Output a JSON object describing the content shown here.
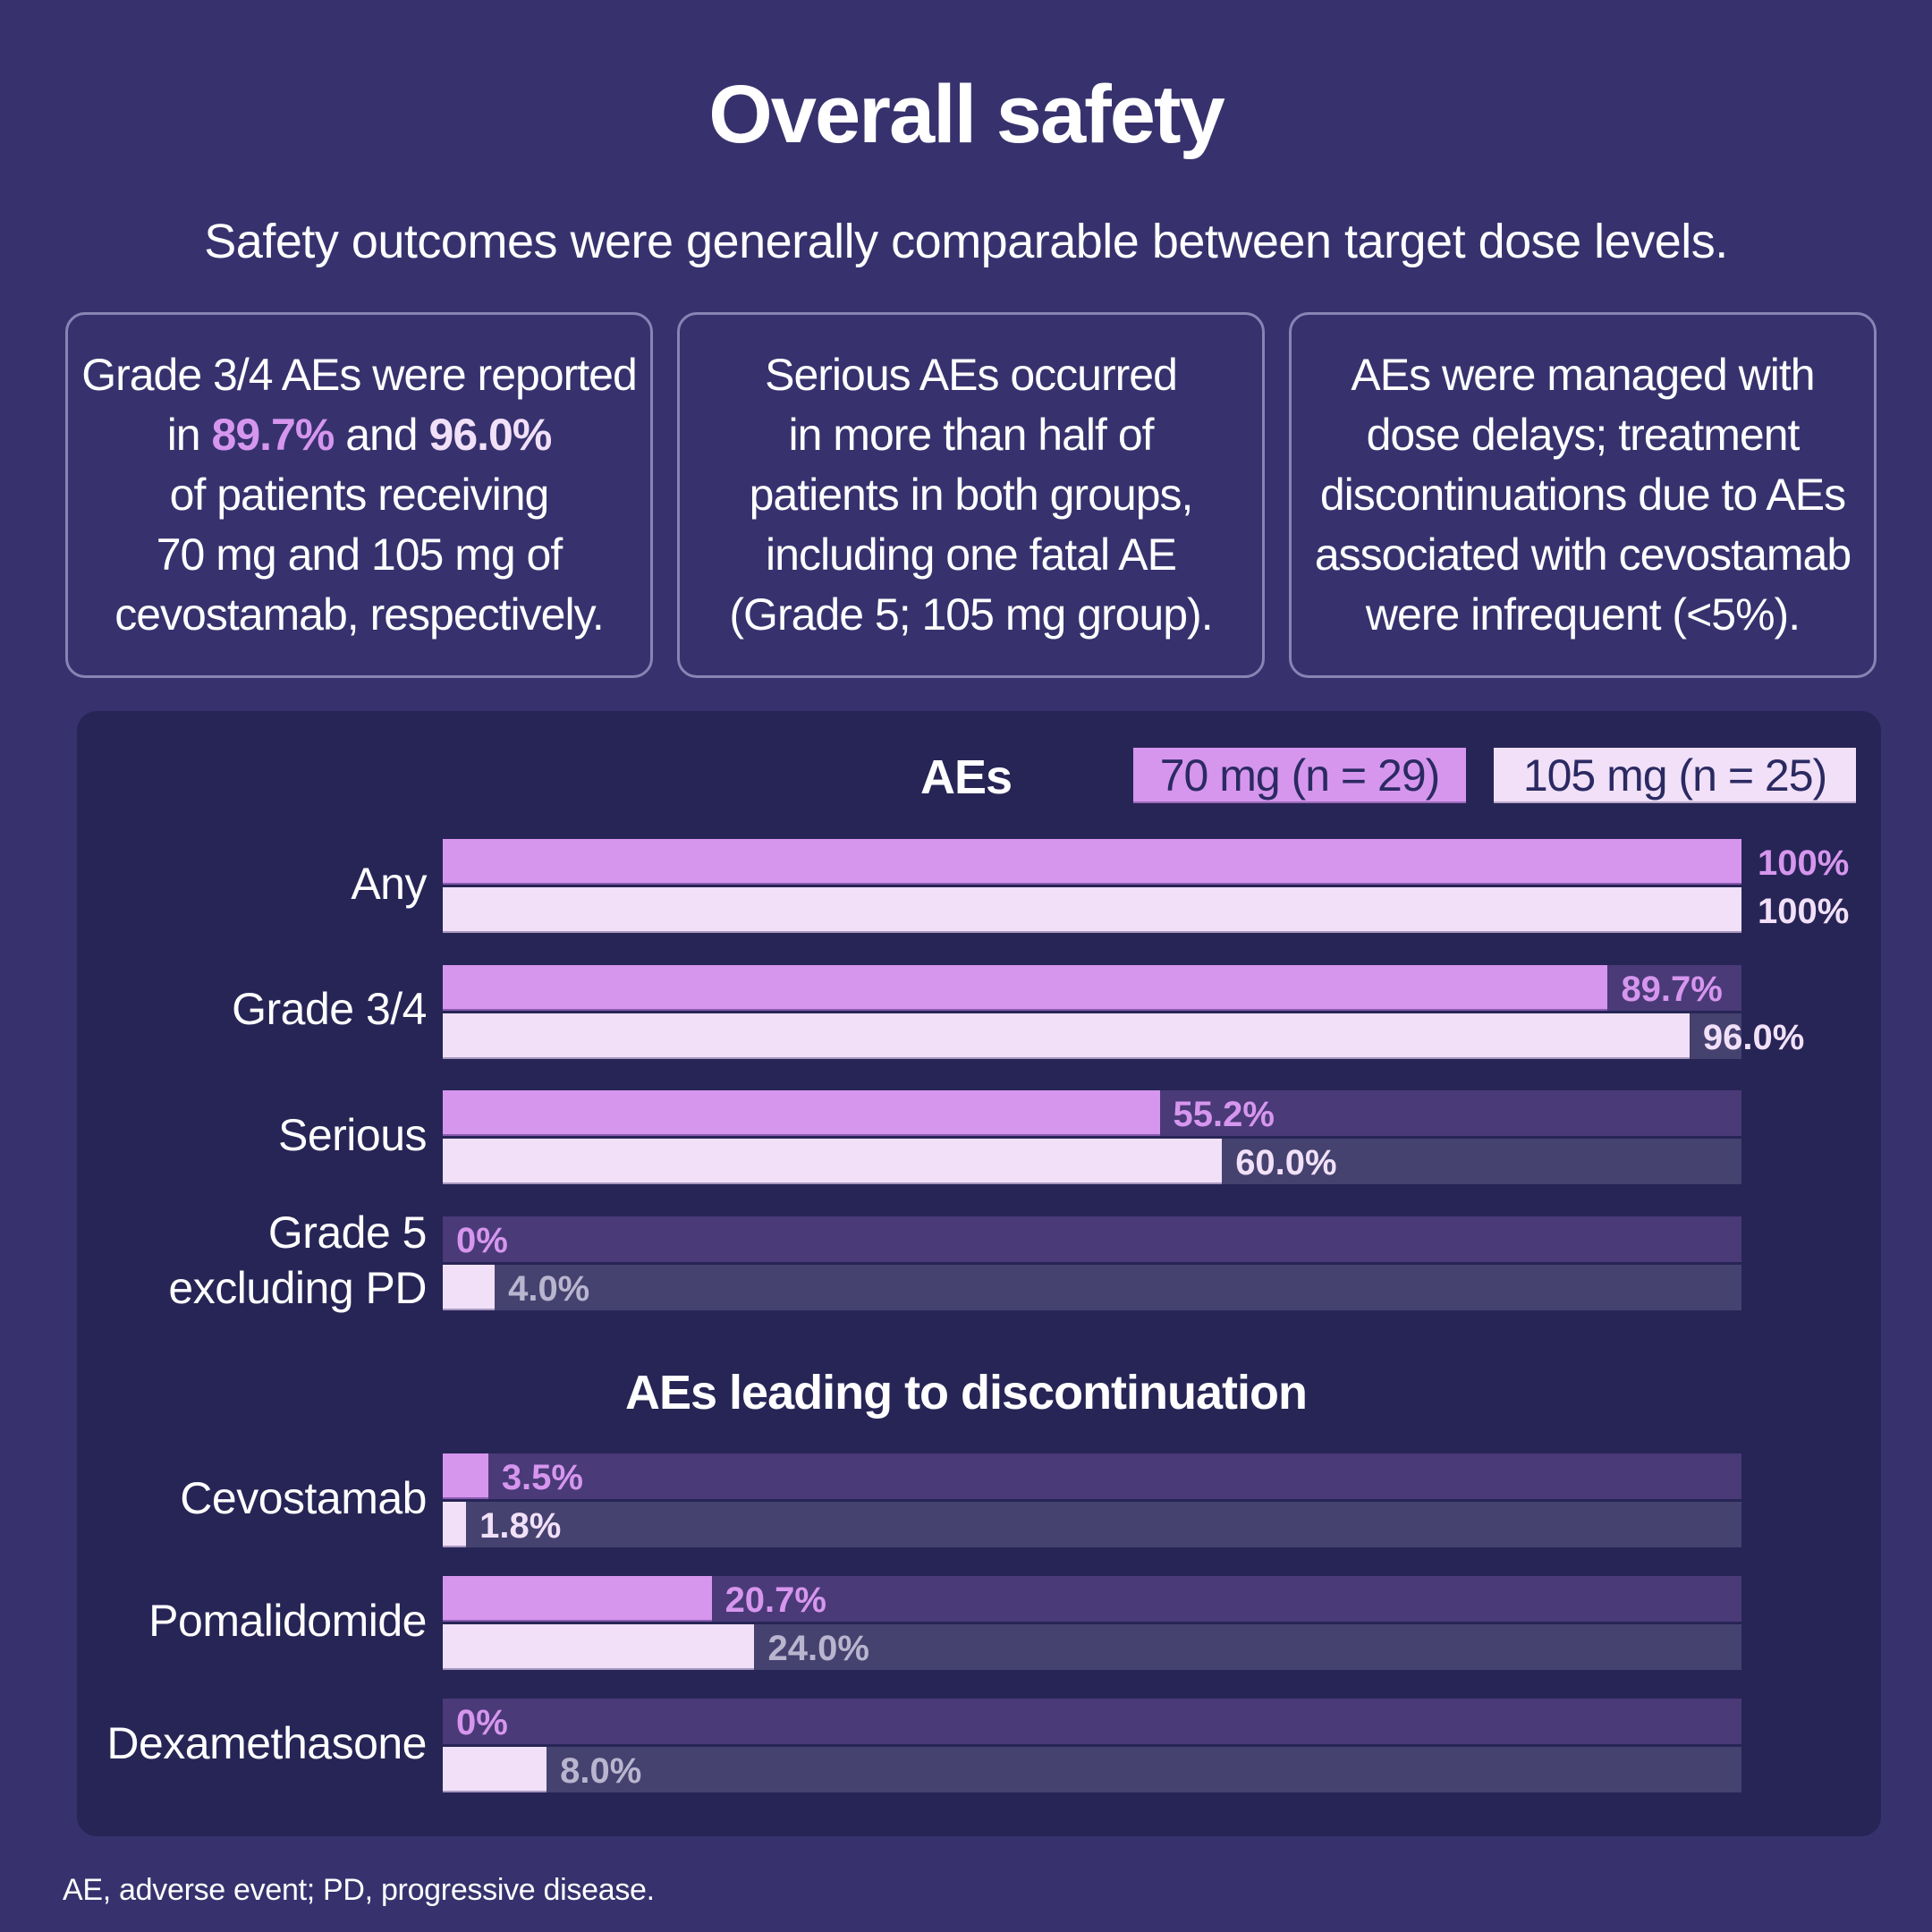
{
  "title": "Overall safety",
  "subtitle": "Safety outcomes were generally comparable between target dose levels.",
  "cards": [
    {
      "lines": [
        [
          {
            "text": "Grade 3/4 AEs were reported"
          }
        ],
        [
          {
            "text": "in "
          },
          {
            "text": "89.7%",
            "style": "hl70"
          },
          {
            "text": " and "
          },
          {
            "text": "96.0%",
            "style": "hl105"
          }
        ],
        [
          {
            "text": "of patients receiving"
          }
        ],
        [
          {
            "text": "70 mg and 105 mg of"
          }
        ],
        [
          {
            "text": "cevostamab, respectively."
          }
        ]
      ]
    },
    {
      "lines": [
        [
          {
            "text": "Serious AEs occurred"
          }
        ],
        [
          {
            "text": "in more than half of"
          }
        ],
        [
          {
            "text": "patients in both groups,"
          }
        ],
        [
          {
            "text": "including one fatal AE"
          }
        ],
        [
          {
            "text": "(Grade 5; 105 mg group)."
          }
        ]
      ]
    },
    {
      "lines": [
        [
          {
            "text": "AEs were managed with"
          }
        ],
        [
          {
            "text": "dose delays; treatment"
          }
        ],
        [
          {
            "text": "discontinuations due to AEs"
          }
        ],
        [
          {
            "text": "associated with cevostamab"
          }
        ],
        [
          {
            "text": "were infrequent (<5%)."
          }
        ]
      ]
    }
  ],
  "footer": "AE, adverse event; PD, progressive disease.",
  "colors": {
    "background": "#37326e",
    "panel": "#272556",
    "series_70mg": "#d696ee",
    "series_105mg": "#f1e0f8",
    "track_70mg": "#4a3a78",
    "track_105mg": "#45426f"
  },
  "chart_data": {
    "type": "bar",
    "orientation": "horizontal",
    "xlim": [
      0,
      100
    ],
    "unit": "%",
    "grid": false,
    "legend_position": "top-right",
    "series": [
      {
        "name": "70 mg (n = 29)",
        "key": "70mg"
      },
      {
        "name": "105 mg (n = 25)",
        "key": "105mg"
      }
    ],
    "sections": [
      {
        "title": "AEs",
        "rows": [
          {
            "label": [
              "Any"
            ],
            "values": [
              100,
              100
            ],
            "labels": [
              "100%",
              "100%"
            ]
          },
          {
            "label": [
              "Grade 3/4"
            ],
            "values": [
              89.7,
              96.0
            ],
            "labels": [
              "89.7%",
              "96.0%"
            ]
          },
          {
            "label": [
              "Serious"
            ],
            "values": [
              55.2,
              60.0
            ],
            "labels": [
              "55.2%",
              "60.0%"
            ]
          },
          {
            "label": [
              "Grade 5",
              "excluding PD"
            ],
            "values": [
              0,
              4.0
            ],
            "labels": [
              "0%",
              "4.0%"
            ]
          }
        ]
      },
      {
        "title": "AEs leading to discontinuation",
        "rows": [
          {
            "label": [
              "Cevostamab"
            ],
            "values": [
              3.5,
              1.8
            ],
            "labels": [
              "3.5%",
              "1.8%"
            ]
          },
          {
            "label": [
              "Pomalidomide"
            ],
            "values": [
              20.7,
              24.0
            ],
            "labels": [
              "20.7%",
              "24.0%"
            ]
          },
          {
            "label": [
              "Dexamethasone"
            ],
            "values": [
              0,
              8.0
            ],
            "labels": [
              "0%",
              "8.0%"
            ]
          }
        ]
      }
    ]
  }
}
